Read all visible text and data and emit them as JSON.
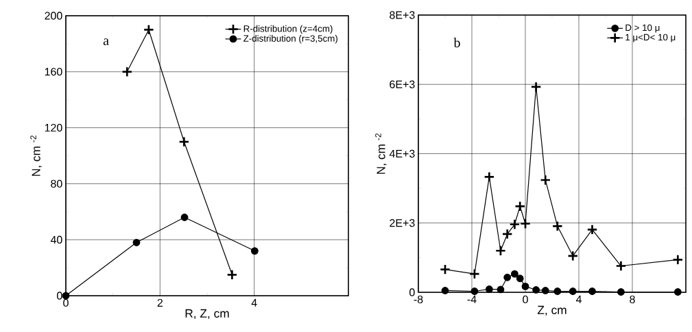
{
  "chart_data": [
    {
      "type": "line",
      "xlabel": "R, Z, cm",
      "ylabel": "N, cm $^{-2}$",
      "annotations": [
        "a"
      ],
      "xlim": [
        0,
        6
      ],
      "xticks": [
        0,
        2,
        4
      ],
      "ylim": [
        0,
        200
      ],
      "yticks": [
        0,
        40,
        80,
        120,
        160,
        200
      ],
      "grid": true,
      "legend": "top right",
      "line_style": "solid",
      "series": [
        {
          "name": "R-distribution (z=4cm)",
          "color": "#000000",
          "marker": "cross",
          "x": [
            1.3,
            1.76,
            2.51,
            3.53
          ],
          "values": [
            160,
            190,
            110,
            15
          ]
        },
        {
          "name": "Z-distribution (r=3,5cm)",
          "color": "#000000",
          "marker": "circle",
          "x": [
            0,
            1.5,
            2.52,
            4.01
          ],
          "values": [
            0,
            38,
            56,
            32
          ]
        }
      ]
    },
    {
      "type": "line",
      "xlabel": "Z, cm",
      "ylabel": "N, cm $^{-2}$",
      "annotations": [
        "b"
      ],
      "xlim": [
        -8,
        12
      ],
      "xticks": [
        -8,
        -4,
        0,
        4,
        8
      ],
      "ylim": [
        0,
        8000
      ],
      "yticks": [
        0,
        {
          "value": 2000,
          "label": "2E+3"
        },
        {
          "value": 4000,
          "label": "4E+3"
        },
        {
          "value": 6000,
          "label": "6E+3"
        },
        {
          "value": 8000,
          "label": "8E+3"
        }
      ],
      "grid": true,
      "legend": "top right",
      "line_style": "solid",
      "series": [
        {
          "name": "D > 10  μ",
          "color": "#000000",
          "marker": "circle",
          "x": [
            -6.0,
            -3.8,
            -2.7,
            -1.85,
            -1.35,
            -0.8,
            -0.4,
            0,
            0.8,
            1.5,
            2.4,
            3.55,
            5.0,
            7.15,
            11.4
          ],
          "values": [
            50,
            30,
            90,
            80,
            430,
            530,
            400,
            170,
            70,
            50,
            30,
            30,
            30,
            10,
            10
          ]
        },
        {
          "name": "1 μ<D< 10 μ",
          "color": "#000000",
          "marker": "cross",
          "x": [
            -6.0,
            -3.8,
            -2.7,
            -1.85,
            -1.35,
            -0.8,
            -0.4,
            0,
            0.8,
            1.5,
            2.4,
            3.55,
            5.0,
            7.15,
            11.4
          ],
          "values": [
            660,
            530,
            3330,
            1200,
            1680,
            1960,
            2480,
            1980,
            5930,
            3240,
            1910,
            1050,
            1810,
            760,
            940
          ]
        }
      ]
    }
  ]
}
